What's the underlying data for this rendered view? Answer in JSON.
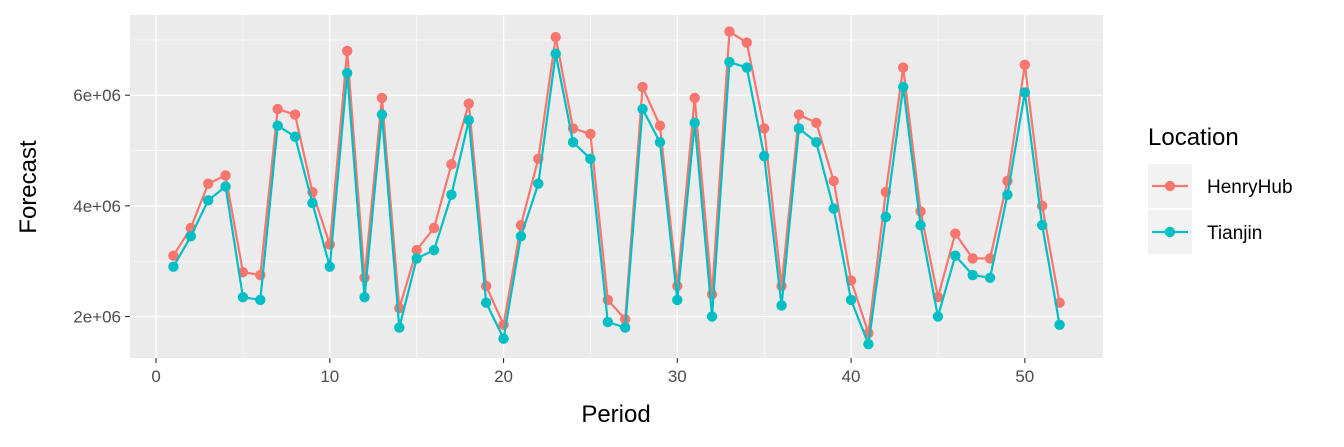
{
  "chart_data": {
    "type": "line",
    "xlabel": "Period",
    "ylabel": "Forecast",
    "xlim": [
      -1.5,
      54.5
    ],
    "ylim": [
      1250000,
      7450000
    ],
    "x_ticks": [
      0,
      10,
      20,
      30,
      40,
      50
    ],
    "x_tick_labels": [
      "0",
      "10",
      "20",
      "30",
      "40",
      "50"
    ],
    "y_ticks": [
      2000000,
      4000000,
      6000000
    ],
    "y_tick_labels": [
      "2e+06",
      "4e+06",
      "6e+06"
    ],
    "grid": true,
    "markers": true,
    "legend": {
      "title": "Location",
      "position": "right"
    },
    "x": [
      1,
      2,
      3,
      4,
      5,
      6,
      7,
      8,
      9,
      10,
      11,
      12,
      13,
      14,
      15,
      16,
      17,
      18,
      19,
      20,
      21,
      22,
      23,
      24,
      25,
      26,
      27,
      28,
      29,
      30,
      31,
      32,
      33,
      34,
      35,
      36,
      37,
      38,
      39,
      40,
      41,
      42,
      43,
      44,
      45,
      46,
      47,
      48,
      49,
      50,
      51,
      52
    ],
    "series": [
      {
        "name": "HenryHub",
        "color": "#F8766D",
        "values": [
          3100000,
          3600000,
          4400000,
          4550000,
          2800000,
          2750000,
          5750000,
          5650000,
          4250000,
          3300000,
          6800000,
          2700000,
          5950000,
          2150000,
          3200000,
          3600000,
          4750000,
          5850000,
          2550000,
          1850000,
          3650000,
          4850000,
          7050000,
          5400000,
          5300000,
          2300000,
          1950000,
          6150000,
          5450000,
          2550000,
          5950000,
          2400000,
          7150000,
          6950000,
          5400000,
          2550000,
          5650000,
          5500000,
          4450000,
          2650000,
          1700000,
          4250000,
          6500000,
          3900000,
          2350000,
          3500000,
          3050000,
          3050000,
          4450000,
          6550000,
          4000000,
          2250000
        ]
      },
      {
        "name": "Tianjin",
        "color": "#00BFC4",
        "values": [
          2900000,
          3450000,
          4100000,
          4350000,
          2350000,
          2300000,
          5450000,
          5250000,
          4050000,
          2900000,
          6400000,
          2350000,
          5650000,
          1800000,
          3050000,
          3200000,
          4200000,
          5550000,
          2250000,
          1600000,
          3450000,
          4400000,
          6750000,
          5150000,
          4850000,
          1900000,
          1800000,
          5750000,
          5150000,
          2300000,
          5500000,
          2000000,
          6600000,
          6500000,
          4900000,
          2200000,
          5400000,
          5150000,
          3950000,
          2300000,
          1500000,
          3800000,
          6150000,
          3650000,
          2000000,
          3100000,
          2750000,
          2700000,
          4200000,
          6050000,
          3650000,
          1850000
        ]
      }
    ]
  }
}
